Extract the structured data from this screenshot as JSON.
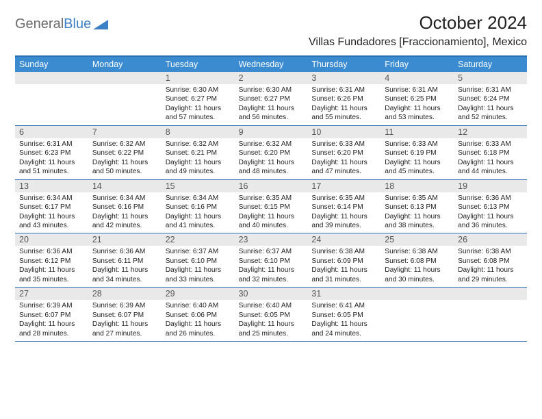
{
  "logo": {
    "text1": "General",
    "text2": "Blue"
  },
  "title": "October 2024",
  "location": "Villas Fundadores [Fraccionamiento], Mexico",
  "day_names": [
    "Sunday",
    "Monday",
    "Tuesday",
    "Wednesday",
    "Thursday",
    "Friday",
    "Saturday"
  ],
  "colors": {
    "header_bg": "#3b8bd0",
    "header_border": "#2e6fb4",
    "daynum_bg": "#e9e9e9",
    "text": "#222222",
    "logo_gray": "#6a6a6a",
    "logo_blue": "#3b7fc4"
  },
  "weeks": [
    {
      "nums": [
        "",
        "",
        "1",
        "2",
        "3",
        "4",
        "5"
      ],
      "cells": [
        "",
        "",
        "Sunrise: 6:30 AM\nSunset: 6:27 PM\nDaylight: 11 hours and 57 minutes.",
        "Sunrise: 6:30 AM\nSunset: 6:27 PM\nDaylight: 11 hours and 56 minutes.",
        "Sunrise: 6:31 AM\nSunset: 6:26 PM\nDaylight: 11 hours and 55 minutes.",
        "Sunrise: 6:31 AM\nSunset: 6:25 PM\nDaylight: 11 hours and 53 minutes.",
        "Sunrise: 6:31 AM\nSunset: 6:24 PM\nDaylight: 11 hours and 52 minutes."
      ]
    },
    {
      "nums": [
        "6",
        "7",
        "8",
        "9",
        "10",
        "11",
        "12"
      ],
      "cells": [
        "Sunrise: 6:31 AM\nSunset: 6:23 PM\nDaylight: 11 hours and 51 minutes.",
        "Sunrise: 6:32 AM\nSunset: 6:22 PM\nDaylight: 11 hours and 50 minutes.",
        "Sunrise: 6:32 AM\nSunset: 6:21 PM\nDaylight: 11 hours and 49 minutes.",
        "Sunrise: 6:32 AM\nSunset: 6:20 PM\nDaylight: 11 hours and 48 minutes.",
        "Sunrise: 6:33 AM\nSunset: 6:20 PM\nDaylight: 11 hours and 47 minutes.",
        "Sunrise: 6:33 AM\nSunset: 6:19 PM\nDaylight: 11 hours and 45 minutes.",
        "Sunrise: 6:33 AM\nSunset: 6:18 PM\nDaylight: 11 hours and 44 minutes."
      ]
    },
    {
      "nums": [
        "13",
        "14",
        "15",
        "16",
        "17",
        "18",
        "19"
      ],
      "cells": [
        "Sunrise: 6:34 AM\nSunset: 6:17 PM\nDaylight: 11 hours and 43 minutes.",
        "Sunrise: 6:34 AM\nSunset: 6:16 PM\nDaylight: 11 hours and 42 minutes.",
        "Sunrise: 6:34 AM\nSunset: 6:16 PM\nDaylight: 11 hours and 41 minutes.",
        "Sunrise: 6:35 AM\nSunset: 6:15 PM\nDaylight: 11 hours and 40 minutes.",
        "Sunrise: 6:35 AM\nSunset: 6:14 PM\nDaylight: 11 hours and 39 minutes.",
        "Sunrise: 6:35 AM\nSunset: 6:13 PM\nDaylight: 11 hours and 38 minutes.",
        "Sunrise: 6:36 AM\nSunset: 6:13 PM\nDaylight: 11 hours and 36 minutes."
      ]
    },
    {
      "nums": [
        "20",
        "21",
        "22",
        "23",
        "24",
        "25",
        "26"
      ],
      "cells": [
        "Sunrise: 6:36 AM\nSunset: 6:12 PM\nDaylight: 11 hours and 35 minutes.",
        "Sunrise: 6:36 AM\nSunset: 6:11 PM\nDaylight: 11 hours and 34 minutes.",
        "Sunrise: 6:37 AM\nSunset: 6:10 PM\nDaylight: 11 hours and 33 minutes.",
        "Sunrise: 6:37 AM\nSunset: 6:10 PM\nDaylight: 11 hours and 32 minutes.",
        "Sunrise: 6:38 AM\nSunset: 6:09 PM\nDaylight: 11 hours and 31 minutes.",
        "Sunrise: 6:38 AM\nSunset: 6:08 PM\nDaylight: 11 hours and 30 minutes.",
        "Sunrise: 6:38 AM\nSunset: 6:08 PM\nDaylight: 11 hours and 29 minutes."
      ]
    },
    {
      "nums": [
        "27",
        "28",
        "29",
        "30",
        "31",
        "",
        ""
      ],
      "cells": [
        "Sunrise: 6:39 AM\nSunset: 6:07 PM\nDaylight: 11 hours and 28 minutes.",
        "Sunrise: 6:39 AM\nSunset: 6:07 PM\nDaylight: 11 hours and 27 minutes.",
        "Sunrise: 6:40 AM\nSunset: 6:06 PM\nDaylight: 11 hours and 26 minutes.",
        "Sunrise: 6:40 AM\nSunset: 6:05 PM\nDaylight: 11 hours and 25 minutes.",
        "Sunrise: 6:41 AM\nSunset: 6:05 PM\nDaylight: 11 hours and 24 minutes.",
        "",
        ""
      ]
    }
  ]
}
